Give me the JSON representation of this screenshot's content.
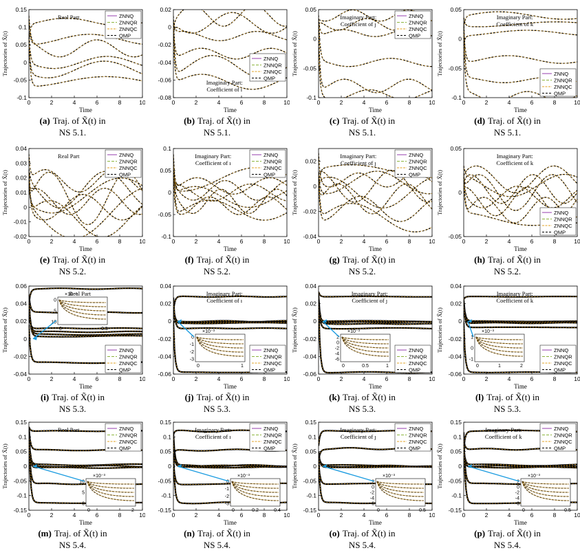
{
  "chart_data": [
    {
      "type": "line",
      "caption": {
        "tag": "(a)",
        "line1": "Traj. of X̃(t) in",
        "line2": "NS 5.1."
      },
      "xlabel": "Time",
      "ylabel": "Trajectories of X̃(t)",
      "xlim": [
        0,
        10
      ],
      "ylim": [
        -0.1,
        0.15
      ],
      "xticks": [
        "0",
        "2",
        "4",
        "6",
        "8",
        "10"
      ],
      "yticks": [
        "-0.1",
        "-0.05",
        "0",
        "0.05",
        "0.1",
        "0.15"
      ],
      "annotation": [
        "Real Part"
      ],
      "legend_position": "top-right",
      "inset": null,
      "seed": 11,
      "baselines": [
        0.115,
        0.065,
        0.04,
        0.0,
        -0.02,
        -0.055
      ],
      "amplitude": 0.018
    },
    {
      "type": "line",
      "caption": {
        "tag": "(b)",
        "line1": "Traj. of X̃(t) in",
        "line2": "NS 5.1."
      },
      "xlabel": "Time",
      "ylabel": "",
      "xlim": [
        0,
        10
      ],
      "ylim": [
        -0.08,
        0.02
      ],
      "xticks": [
        "0",
        "2",
        "4",
        "6",
        "8",
        "10"
      ],
      "yticks": [
        "-0.08",
        "-0.06",
        "-0.04",
        "-0.02",
        "0",
        "0.02"
      ],
      "annotation": [
        "Imaginary Part:",
        "Coefficient of ı"
      ],
      "legend_position": "middle-right",
      "inset": null,
      "seed": 23,
      "baselines": [
        0.013,
        0.005,
        -0.01,
        -0.03,
        -0.045,
        -0.062
      ],
      "amplitude": 0.01
    },
    {
      "type": "line",
      "caption": {
        "tag": "(c)",
        "line1": "Traj. of X̃(t) in",
        "line2": "NS 5.1."
      },
      "xlabel": "Time",
      "ylabel": "Trajectories of X̃(t)",
      "xlim": [
        0,
        10
      ],
      "ylim": [
        -0.1,
        0.05
      ],
      "xticks": [
        "0",
        "2",
        "4",
        "6",
        "8",
        "10"
      ],
      "yticks": [
        "-0.1",
        "-0.05",
        "0",
        "0.05"
      ],
      "annotation": [
        "Imaginary Part:",
        "Coefficient of ȷ"
      ],
      "legend_position": "top-right",
      "inset": null,
      "seed": 37,
      "baselines": [
        0.04,
        0.025,
        0.01,
        -0.04,
        -0.08,
        -0.095
      ],
      "amplitude": 0.008
    },
    {
      "type": "line",
      "caption": {
        "tag": "(d)",
        "line1": "Traj. of X̃(t) in",
        "line2": "NS 5.1."
      },
      "xlabel": "Time",
      "ylabel": "Trajectories of X̃(t)",
      "xlim": [
        0,
        10
      ],
      "ylim": [
        -0.1,
        0.05
      ],
      "xticks": [
        "0",
        "2",
        "4",
        "6",
        "8",
        "10"
      ],
      "yticks": [
        "-0.1",
        "-0.05",
        "0",
        "0.05"
      ],
      "annotation": [
        "Imaginary Part:",
        "Coefficient of k"
      ],
      "legend_position": "bottom-right",
      "inset": null,
      "seed": 41,
      "baselines": [
        0.04,
        0.025,
        0.01,
        -0.035,
        -0.07,
        -0.098
      ],
      "amplitude": 0.006
    },
    {
      "type": "line",
      "caption": {
        "tag": "(e)",
        "line1": "Traj. of X̃(t) in",
        "line2": "NS 5.2."
      },
      "xlabel": "Time",
      "ylabel": "Trajectories of X̃(t)",
      "xlim": [
        0,
        10
      ],
      "ylim": [
        -0.02,
        0.04
      ],
      "xticks": [
        "0",
        "2",
        "4",
        "6",
        "8",
        "10"
      ],
      "yticks": [
        "-0.02",
        "-0.01",
        "0",
        "0.01",
        "0.02",
        "0.03",
        "0.04"
      ],
      "annotation": [
        "Real Part"
      ],
      "legend_position": "top-right",
      "inset": null,
      "seed": 53,
      "baselines": [
        0.018,
        0.012,
        0.008,
        0.004,
        0.0,
        -0.004,
        -0.008,
        0.006
      ],
      "amplitude": 0.012
    },
    {
      "type": "line",
      "caption": {
        "tag": "(f)",
        "line1": "Traj. of X̃(t) in",
        "line2": "NS 5.2."
      },
      "xlabel": "Time",
      "ylabel": "",
      "xlim": [
        0,
        10
      ],
      "ylim": [
        -0.1,
        0.1
      ],
      "xticks": [
        "0",
        "2",
        "4",
        "6",
        "8",
        "10"
      ],
      "yticks": [
        "-0.1",
        "-0.05",
        "0",
        "0.05",
        "0.1"
      ],
      "annotation": [
        "Imaginary Part:",
        "Coefficient of ı"
      ],
      "legend_position": "top-right",
      "inset": null,
      "seed": 61,
      "baselines": [
        0.03,
        0.015,
        0.005,
        -0.01,
        -0.02,
        -0.04,
        0.0,
        -0.03
      ],
      "amplitude": 0.02
    },
    {
      "type": "line",
      "caption": {
        "tag": "(g)",
        "line1": "Traj. of X̃(t) in",
        "line2": "NS 5.2."
      },
      "xlabel": "Time",
      "ylabel": "Trajectories of X̃(t)",
      "xlim": [
        0,
        10
      ],
      "ylim": [
        -0.04,
        0.03
      ],
      "xticks": [
        "0",
        "2",
        "4",
        "6",
        "8",
        "10"
      ],
      "yticks": [
        "-0.04",
        "-0.02",
        "0",
        "0.02"
      ],
      "annotation": [
        "Imaginary Part:",
        "Coefficient of ȷ"
      ],
      "legend_position": "top-right",
      "inset": null,
      "seed": 71,
      "baselines": [
        0.012,
        0.005,
        0.0,
        -0.005,
        -0.01,
        -0.018,
        -0.025,
        0.003
      ],
      "amplitude": 0.01
    },
    {
      "type": "line",
      "caption": {
        "tag": "(h)",
        "line1": "Traj. of X̃(t) in",
        "line2": "NS 5.2."
      },
      "xlabel": "Time",
      "ylabel": "Trajectories of X̃(t)",
      "xlim": [
        0,
        10
      ],
      "ylim": [
        -0.05,
        0.05
      ],
      "xticks": [
        "0",
        "2",
        "4",
        "6",
        "8",
        "10"
      ],
      "yticks": [
        "-0.05",
        "0",
        "0.05"
      ],
      "annotation": [
        "Imaginary Part:",
        "Coefficient of k"
      ],
      "legend_position": "bottom-right",
      "inset": null,
      "seed": 83,
      "baselines": [
        0.015,
        0.008,
        0.0,
        -0.005,
        -0.01,
        -0.02,
        -0.03,
        0.004
      ],
      "amplitude": 0.014
    },
    {
      "type": "line",
      "caption": {
        "tag": "(i)",
        "line1": "Traj. of X̃(t) in",
        "line2": "NS 5.3."
      },
      "xlabel": "Time",
      "ylabel": "Trajectories of X̃(t)",
      "xlim": [
        0,
        10
      ],
      "ylim": [
        -0.04,
        0.06
      ],
      "xticks": [
        "0",
        "2",
        "4",
        "6",
        "8",
        "10"
      ],
      "yticks": [
        "-0.04",
        "-0.02",
        "0",
        "0.02",
        "0.04",
        "0.06"
      ],
      "annotation": [
        "Real Part"
      ],
      "legend_position": "bottom-right",
      "inset": {
        "exponent": "×10⁻³",
        "yticks": [
          "0",
          "5",
          "10"
        ],
        "xticks": [
          "0",
          "0.5"
        ],
        "pos": "top-center"
      },
      "seed": 97,
      "baselines": [
        0.057,
        0.03,
        0.012,
        0.008,
        0.005,
        0.003,
        -0.027
      ],
      "amplitude": 0.0005,
      "band": true
    },
    {
      "type": "line",
      "caption": {
        "tag": "(j)",
        "line1": "Traj. of X̃(t) in",
        "line2": "NS 5.3."
      },
      "xlabel": "Time",
      "ylabel": "",
      "xlim": [
        0,
        10
      ],
      "ylim": [
        -0.06,
        0.04
      ],
      "xticks": [
        "0",
        "2",
        "4",
        "6",
        "8",
        "10"
      ],
      "yticks": [
        "-0.06",
        "-0.04",
        "-0.02",
        "0",
        "0.02",
        "0.04"
      ],
      "annotation": [
        "Imaginary Part:",
        "Coefficient of ı"
      ],
      "legend_position": "bottom-right",
      "inset": {
        "exponent": "×10⁻³",
        "yticks": [
          "0",
          "-1",
          "-2",
          "-3"
        ],
        "xticks": [
          "0",
          "1"
        ],
        "pos": "bottom-center"
      },
      "seed": 101,
      "baselines": [
        0.028,
        0.0,
        -0.001,
        -0.002,
        -0.008,
        -0.058
      ],
      "amplitude": 0.0004,
      "band": true
    },
    {
      "type": "line",
      "caption": {
        "tag": "(k)",
        "line1": "Traj. of X̃(t) in",
        "line2": "NS 5.3."
      },
      "xlabel": "Time",
      "ylabel": "Trajectories of X̃(t)",
      "xlim": [
        0,
        10
      ],
      "ylim": [
        -0.06,
        0.04
      ],
      "xticks": [
        "0",
        "2",
        "4",
        "6",
        "8",
        "10"
      ],
      "yticks": [
        "-0.06",
        "-0.04",
        "-0.02",
        "0",
        "0.02",
        "0.04"
      ],
      "annotation": [
        "Imaginary Part:",
        "Coefficient of ȷ"
      ],
      "legend_position": "bottom-right",
      "inset": {
        "exponent": "×10⁻³",
        "yticks": [
          "2",
          "0",
          "-2",
          "-4",
          "-6"
        ],
        "xticks": [
          "0",
          "0.5",
          "1"
        ],
        "pos": "bottom-center"
      },
      "seed": 109,
      "baselines": [
        0.028,
        0.0,
        -0.001,
        -0.003,
        -0.008,
        -0.058
      ],
      "amplitude": 0.0004,
      "band": true
    },
    {
      "type": "line",
      "caption": {
        "tag": "(l)",
        "line1": "Traj. of X̃(t) in",
        "line2": "NS 5.3."
      },
      "xlabel": "Time",
      "ylabel": "Trajectories of X̃(t)",
      "xlim": [
        0,
        10
      ],
      "ylim": [
        -0.06,
        0.04
      ],
      "xticks": [
        "0",
        "2",
        "4",
        "6",
        "8",
        "10"
      ],
      "yticks": [
        "-0.06",
        "-0.04",
        "-0.02",
        "0",
        "0.02",
        "0.04"
      ],
      "annotation": [
        "Imaginary Part:",
        "Coefficient of k"
      ],
      "legend_position": "bottom-right",
      "inset": {
        "exponent": "×10⁻³",
        "yticks": [
          "1",
          "0",
          "-1"
        ],
        "xticks": [
          "0",
          "1",
          "2"
        ],
        "pos": "bottom-left"
      },
      "seed": 113,
      "baselines": [
        0.028,
        0.0,
        -0.001,
        -0.002,
        -0.007,
        -0.058
      ],
      "amplitude": 0.0004,
      "band": true
    },
    {
      "type": "line",
      "caption": {
        "tag": "(m)",
        "line1": "Traj. of X̃(t) in",
        "line2": "NS 5.4."
      },
      "xlabel": "Time",
      "ylabel": "Trajectories of X̃(t)",
      "xlim": [
        0,
        10
      ],
      "ylim": [
        -0.15,
        0.15
      ],
      "xticks": [
        "0",
        "2",
        "4",
        "6",
        "8",
        "10"
      ],
      "yticks": [
        "-0.15",
        "-0.1",
        "-0.05",
        "0",
        "0.05",
        "0.1",
        "0.15"
      ],
      "annotation": [
        "Real Part"
      ],
      "legend_position": "top-right",
      "inset": {
        "exponent": "×10⁻³",
        "yticks": [
          "10",
          "5",
          "0"
        ],
        "xticks": [
          "0",
          "2"
        ],
        "pos": "bottom-right"
      },
      "seed": 127,
      "baselines": [
        0.12,
        0.055,
        0.005,
        0.0,
        -0.005,
        -0.06,
        -0.125
      ],
      "amplitude": 0.002,
      "band": true
    },
    {
      "type": "line",
      "caption": {
        "tag": "(n)",
        "line1": "Traj. of X̃(t) in",
        "line2": "NS 5.4."
      },
      "xlabel": "Time",
      "ylabel": "",
      "xlim": [
        0,
        10
      ],
      "ylim": [
        -0.15,
        0.15
      ],
      "xticks": [
        "0",
        "2",
        "4",
        "6",
        "8",
        "10"
      ],
      "yticks": [
        "-0.15",
        "-0.1",
        "-0.05",
        "0",
        "0.05",
        "0.1",
        "0.15"
      ],
      "annotation": [
        "Imaginary Part:",
        "Coefficient of ı"
      ],
      "legend_position": "top-right",
      "inset": {
        "exponent": "×10⁻³",
        "yticks": [
          "0",
          "-1",
          "-2",
          "-3"
        ],
        "xticks": [
          "0",
          "0.2",
          "0.4"
        ],
        "pos": "bottom-right"
      },
      "seed": 131,
      "baselines": [
        0.12,
        0.055,
        0.002,
        0.0,
        -0.003,
        -0.06,
        -0.125
      ],
      "amplitude": 0.002,
      "band": true
    },
    {
      "type": "line",
      "caption": {
        "tag": "(o)",
        "line1": "Traj. of X̃(t) in",
        "line2": "NS 5.4."
      },
      "xlabel": "Time",
      "ylabel": "Trajectories of X̃(t)",
      "xlim": [
        0,
        10
      ],
      "ylim": [
        -0.15,
        0.15
      ],
      "xticks": [
        "0",
        "2",
        "4",
        "6",
        "8",
        "10"
      ],
      "yticks": [
        "-0.15",
        "-0.1",
        "-0.05",
        "0",
        "0.05",
        "0.1",
        "0.15"
      ],
      "annotation": [
        "Imaginary Part:",
        "Coefficient of ȷ"
      ],
      "legend_position": "top-right",
      "inset": {
        "exponent": "×10⁻³",
        "yticks": [
          "2",
          "0",
          "-2",
          "-4",
          "-6"
        ],
        "xticks": [
          "0",
          "0.5"
        ],
        "pos": "bottom-right"
      },
      "seed": 137,
      "baselines": [
        0.12,
        0.06,
        0.002,
        0.0,
        -0.003,
        -0.06,
        -0.125
      ],
      "amplitude": 0.002,
      "band": true
    },
    {
      "type": "line",
      "caption": {
        "tag": "(p)",
        "line1": "Traj. of X̃(t) in",
        "line2": "NS 5.4."
      },
      "xlabel": "Time",
      "ylabel": "Trajectories of X̃(t)",
      "xlim": [
        0,
        10
      ],
      "ylim": [
        -0.15,
        0.15
      ],
      "xticks": [
        "0",
        "2",
        "4",
        "6",
        "8",
        "10"
      ],
      "yticks": [
        "-0.15",
        "-0.1",
        "-0.05",
        "0",
        "0.05",
        "0.1",
        "0.15"
      ],
      "annotation": [
        "Imaginary Part:",
        "Coefficient of k"
      ],
      "legend_position": "top-right",
      "inset": {
        "exponent": "×10⁻³",
        "yticks": [
          "2",
          "0",
          "-2",
          "-4",
          "-6"
        ],
        "xticks": [
          "0",
          "0.5"
        ],
        "pos": "bottom-right"
      },
      "seed": 139,
      "baselines": [
        0.12,
        0.058,
        0.004,
        0.0,
        -0.004,
        -0.06,
        -0.125
      ],
      "amplitude": 0.002,
      "band": true
    }
  ],
  "legend": [
    {
      "name": "ZNNQ",
      "color": "#9e4fb3",
      "dash": ""
    },
    {
      "name": "ZNNQR",
      "color": "#8cb43c",
      "dash": "4,2"
    },
    {
      "name": "ZNNQC",
      "color": "#e0a020",
      "dash": "3,1.5"
    },
    {
      "name": "QMP",
      "color": "#000000",
      "dash": "3,2"
    }
  ],
  "colors": {
    "inset_arrow": "#1a9be0"
  }
}
